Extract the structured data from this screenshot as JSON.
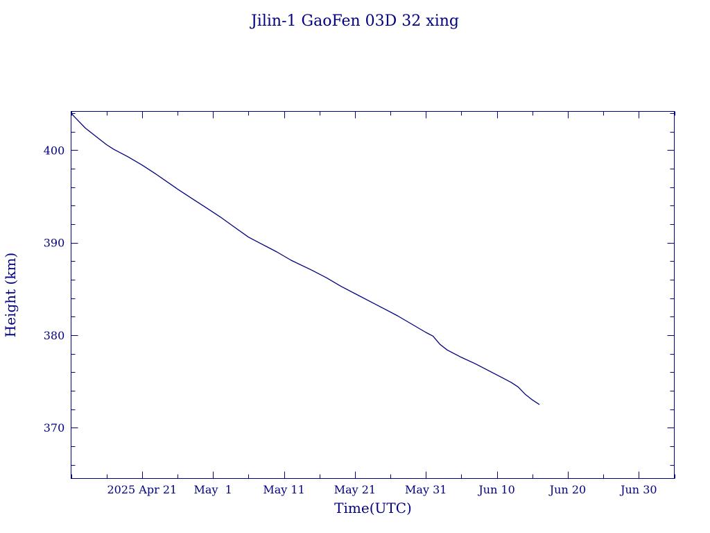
{
  "chart_data": {
    "type": "line",
    "title": "Jilin-1 GaoFen 03D 32 xing",
    "xlabel": "Time(UTC)",
    "ylabel": "Height (km)",
    "color": "#000080",
    "xlim": [
      "2025-04-11",
      "2025-07-05"
    ],
    "ylim": [
      364.5,
      404.2
    ],
    "grid": false,
    "x_tick_labels": [
      {
        "date": "2025-04-21",
        "label": "2025 Apr 21"
      },
      {
        "date": "2025-05-01",
        "label": "May  1"
      },
      {
        "date": "2025-05-11",
        "label": "May 11"
      },
      {
        "date": "2025-05-21",
        "label": "May 21"
      },
      {
        "date": "2025-05-31",
        "label": "May 31"
      },
      {
        "date": "2025-06-10",
        "label": "Jun 10"
      },
      {
        "date": "2025-06-20",
        "label": "Jun 20"
      },
      {
        "date": "2025-06-30",
        "label": "Jun 30"
      }
    ],
    "y_tick_labels": [
      {
        "value": 370,
        "label": "370"
      },
      {
        "value": 380,
        "label": "380"
      },
      {
        "value": 390,
        "label": "390"
      },
      {
        "value": 400,
        "label": "400"
      }
    ],
    "series": [
      {
        "x": [
          "2025-04-11",
          "2025-04-12",
          "2025-04-13",
          "2025-04-14",
          "2025-04-15",
          "2025-04-16",
          "2025-04-17",
          "2025-04-19",
          "2025-04-21",
          "2025-04-23",
          "2025-04-26",
          "2025-04-28",
          "2025-04-30",
          "2025-05-02",
          "2025-05-04",
          "2025-05-06",
          "2025-05-08",
          "2025-05-10",
          "2025-05-12",
          "2025-05-15",
          "2025-05-17",
          "2025-05-19",
          "2025-05-21",
          "2025-05-23",
          "2025-05-25",
          "2025-05-27",
          "2025-05-29",
          "2025-05-31",
          "2025-06-01",
          "2025-06-02",
          "2025-06-03",
          "2025-06-05",
          "2025-06-07",
          "2025-06-09",
          "2025-06-11",
          "2025-06-12",
          "2025-06-13",
          "2025-06-14",
          "2025-06-15",
          "2025-06-16"
        ],
        "y": [
          404.0,
          403.2,
          402.4,
          401.8,
          401.2,
          400.6,
          400.1,
          399.3,
          398.4,
          397.4,
          395.8,
          394.8,
          393.8,
          392.8,
          391.7,
          390.6,
          389.8,
          389.0,
          388.1,
          387.0,
          386.2,
          385.3,
          384.5,
          383.7,
          382.9,
          382.1,
          381.2,
          380.3,
          379.9,
          379.0,
          378.4,
          377.6,
          376.9,
          376.1,
          375.3,
          374.9,
          374.4,
          373.6,
          373.0,
          372.5
        ]
      }
    ]
  }
}
